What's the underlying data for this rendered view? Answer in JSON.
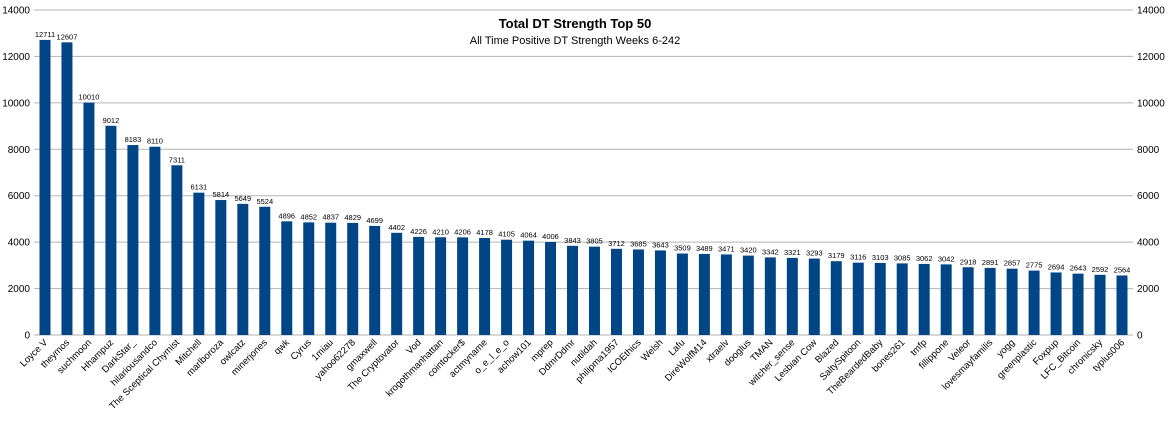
{
  "chart_data": {
    "type": "bar",
    "title": "Total DT Strength Top 50",
    "subtitle": "All Time Positive DT Strength Weeks 6-242",
    "xlabel": "",
    "ylabel": "",
    "ylim": [
      0,
      14000
    ],
    "yticks": [
      0,
      2000,
      4000,
      6000,
      8000,
      10000,
      12000,
      14000
    ],
    "y_axis_right": true,
    "grid": true,
    "legend": "none",
    "bar_color": "#004586",
    "categories": [
      "Loyce V",
      "theymos",
      "suchmoon",
      "Hhampuz",
      "DarkStar_",
      "hilariousandco",
      "The Sceptical Chymist",
      "Mitchell",
      "marlboroza",
      "owlcatz",
      "minerjones",
      "qwk",
      "Cyrus",
      "1miau",
      "yahoo62278",
      "gmaxwell",
      "The Cryptovator",
      "Vod",
      "krogothmanhattan",
      "cointocker$",
      "actmyname",
      "o_e_l_e_o",
      "achow101",
      "mprep",
      "DdmrDdmr",
      "nutildah",
      "philipma1957",
      "ICOEthics",
      "Welsh",
      "Lafu",
      "DireWolfM14",
      "xtraelv",
      "dooglus",
      "TMAN",
      "witcher_sense",
      "Lesbian Cow",
      "Blazed",
      "SaltySpitoon",
      "TheBeardedBaby",
      "bones261",
      "tmfp",
      "fillippone",
      "Veleor",
      "lovesmayfamilis",
      "yogg",
      "greenplastic",
      "Foxpup",
      "LFC_Bitcoin",
      "chronicsky",
      "typlus006"
    ],
    "values": [
      12711,
      12607,
      10010,
      9012,
      8183,
      8110,
      7311,
      6131,
      5814,
      5649,
      5524,
      4896,
      4852,
      4837,
      4829,
      4699,
      4402,
      4226,
      4210,
      4206,
      4178,
      4105,
      4064,
      4006,
      3843,
      3805,
      3712,
      3685,
      3643,
      3509,
      3489,
      3471,
      3420,
      3342,
      3321,
      3293,
      3179,
      3116,
      3103,
      3085,
      3062,
      3042,
      2918,
      2891,
      2857,
      2775,
      2694,
      2643,
      2592,
      2564
    ]
  }
}
